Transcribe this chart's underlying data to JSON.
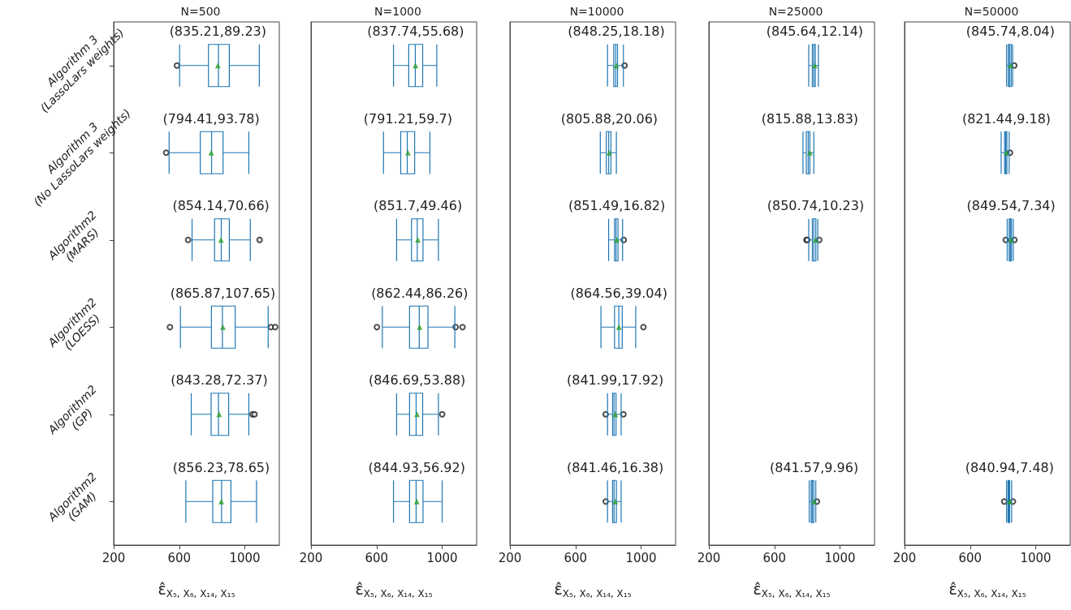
{
  "chart_data": [
    {
      "type": "box",
      "title": "N=500",
      "xlabel": "ε̂$_{X₅, X₆, X₁₄, X₁₅}$",
      "orientation": "horizontal",
      "color": "#1f77b4",
      "marker": "triangle",
      "grid": false,
      "categories": [
        "Algorithm 3\n(LassoLars weights)",
        "Algorithm 3\n(No LassoLars weights)",
        "Algorithm2\n(MARS)",
        "Algorithm2\n(LOESS)",
        "Algorithm2\n(GP)",
        "Algorithm2\n(GAM)"
      ],
      "xlim": [
        200,
        1210
      ],
      "xticks": [
        200,
        600,
        1000
      ],
      "boxes": [
        {
          "low": 602,
          "q1": 778,
          "median": 839,
          "q3": 905,
          "high": 1088,
          "mean": 835.21,
          "outliers": [
            586
          ]
        },
        {
          "low": 538,
          "q1": 728,
          "median": 797,
          "q3": 867,
          "high": 1024,
          "mean": 794.41,
          "outliers": [
            520
          ]
        },
        {
          "low": 678,
          "q1": 815,
          "median": 856,
          "q3": 905,
          "high": 1033,
          "mean": 854.14,
          "outliers": [
            654,
            1090
          ]
        },
        {
          "low": 607,
          "q1": 796,
          "median": 863,
          "q3": 941,
          "high": 1142,
          "mean": 865.87,
          "outliers": [
            543,
            1159,
            1185
          ]
        },
        {
          "low": 673,
          "q1": 794,
          "median": 839,
          "q3": 901,
          "high": 1024,
          "mean": 843.28,
          "outliers": [
            1047,
            1059
          ]
        },
        {
          "low": 640,
          "q1": 804,
          "median": 858,
          "q3": 915,
          "high": 1071,
          "mean": 856.23
        }
      ],
      "annotations": [
        "(835.21,89.23)",
        "(794.41,93.78)",
        "(854.14,70.66)",
        "(865.87,107.65)",
        "(843.28,72.37)",
        "(856.23,78.65)"
      ]
    },
    {
      "type": "box",
      "title": "N=1000",
      "xlabel": "ε̂$_{X₅, X₆, X₁₄, X₁₅}$",
      "orientation": "horizontal",
      "color": "#1f77b4",
      "marker": "triangle",
      "grid": false,
      "tick_labels": "x",
      "categories": [
        null,
        null,
        null,
        null,
        null,
        null
      ],
      "xlim": [
        200,
        1210
      ],
      "xticks": [
        200,
        600,
        1000
      ],
      "boxes": [
        {
          "low": 703,
          "q1": 796,
          "median": 836,
          "q3": 881,
          "high": 967,
          "mean": 837.74
        },
        {
          "low": 642,
          "q1": 747,
          "median": 787,
          "q3": 832,
          "high": 925,
          "mean": 791.21
        },
        {
          "low": 722,
          "q1": 813,
          "median": 848,
          "q3": 883,
          "high": 977,
          "mean": 851.7
        },
        {
          "low": 635,
          "q1": 801,
          "median": 860,
          "q3": 913,
          "high": 1077,
          "mean": 862.44,
          "outliers": [
            602,
            1082,
            1124
          ]
        },
        {
          "low": 722,
          "q1": 801,
          "median": 841,
          "q3": 881,
          "high": 977,
          "mean": 846.69,
          "outliers": [
            1000
          ]
        },
        {
          "low": 703,
          "q1": 801,
          "median": 841,
          "q3": 883,
          "high": 1000,
          "mean": 844.93
        }
      ],
      "annotations": [
        "(837.74,55.68)",
        "(791.21,59.7)",
        "(851.7,49.46)",
        "(862.44,86.26)",
        "(846.69,53.88)",
        "(844.93,56.92)"
      ]
    },
    {
      "type": "box",
      "title": "N=10000",
      "xlabel": "ε̂$_{X₅, X₆, X₁₄, X₁₅}$",
      "orientation": "horizontal",
      "color": "#1f77b4",
      "marker": "triangle",
      "grid": false,
      "tick_labels": "x",
      "categories": [
        null,
        null,
        null,
        null,
        null,
        null
      ],
      "xlim": [
        200,
        1210
      ],
      "xticks": [
        200,
        600,
        1000
      ],
      "boxes": [
        {
          "low": 795,
          "q1": 833,
          "median": 845,
          "q3": 856,
          "high": 892,
          "mean": 848.25,
          "outliers": [
            899
          ]
        },
        {
          "low": 751,
          "q1": 788,
          "median": 802,
          "q3": 816,
          "high": 849,
          "mean": 805.88
        },
        {
          "low": 802,
          "q1": 838,
          "median": 847,
          "q3": 859,
          "high": 887,
          "mean": 851.49,
          "outliers": [
            894
          ]
        },
        {
          "low": 755,
          "q1": 838,
          "median": 864,
          "q3": 885,
          "high": 967,
          "mean": 864.56,
          "outliers": [
            1014
          ]
        },
        {
          "low": 795,
          "q1": 826,
          "median": 835,
          "q3": 847,
          "high": 878,
          "mean": 841.99,
          "outliers": [
            784,
            892
          ]
        },
        {
          "low": 795,
          "q1": 826,
          "median": 835,
          "q3": 849,
          "high": 878,
          "mean": 841.46,
          "outliers": [
            784
          ]
        }
      ],
      "annotations": [
        "(848.25,18.18)",
        "(805.88,20.06)",
        "(851.49,16.82)",
        "(864.56,39.04)",
        "(841.99,17.92)",
        "(841.46,16.38)"
      ]
    },
    {
      "type": "box",
      "title": "N=25000",
      "xlabel": "ε̂$_{X₅, X₆, X₁₄, X₁₅}$",
      "orientation": "horizontal",
      "color": "#1f77b4",
      "marker": "triangle",
      "grid": false,
      "tick_labels": "x",
      "categories": [
        null,
        null,
        null,
        null,
        null,
        null
      ],
      "xlim": [
        200,
        1210
      ],
      "xticks": [
        200,
        600,
        1000
      ],
      "boxes": [
        {
          "low": 809,
          "q1": 831,
          "median": 840,
          "q3": 849,
          "high": 868,
          "mean": 845.64
        },
        {
          "low": 774,
          "q1": 794,
          "median": 806,
          "q3": 816,
          "high": 840,
          "mean": 815.88
        },
        {
          "low": 809,
          "q1": 831,
          "median": 840,
          "q3": 852,
          "high": 864,
          "mean": 850.74,
          "outliers": [
            795,
            800,
            873
          ]
        },
        null,
        null,
        {
          "low": 812,
          "q1": 824,
          "median": 831,
          "q3": 840,
          "high": 852,
          "mean": 841.57,
          "outliers": [
            859
          ]
        }
      ],
      "annotations": [
        "(845.64,12.14)",
        "(815.88,13.83)",
        "(850.74,10.23)",
        "(841.57,9.96)"
      ]
    },
    {
      "type": "box",
      "title": "N=50000",
      "xlabel": "ε̂$_{X₅, X₆, X₁₄, X₁₅}$",
      "orientation": "horizontal",
      "color": "#1f77b4",
      "marker": "triangle",
      "grid": false,
      "tick_labels": "x",
      "categories": [
        null,
        null,
        null,
        null,
        null,
        null
      ],
      "xlim": [
        200,
        1210
      ],
      "xticks": [
        200,
        600,
        1000
      ],
      "boxes": [
        {
          "low": 822,
          "q1": 833,
          "median": 840,
          "q3": 850,
          "high": 859,
          "mean": 845.74,
          "outliers": [
            869
          ]
        },
        {
          "low": 789,
          "q1": 810,
          "median": 817,
          "q3": 824,
          "high": 838,
          "mean": 821.44,
          "outliers": [
            843
          ]
        },
        {
          "low": 826,
          "q1": 838,
          "median": 845,
          "q3": 852,
          "high": 863,
          "mean": 849.54,
          "outliers": [
            817,
            870
          ]
        },
        null,
        null,
        {
          "low": 822,
          "q1": 831,
          "median": 836,
          "q3": 841,
          "high": 853,
          "mean": 840.94,
          "outliers": [
            808,
            861
          ]
        }
      ],
      "annotations": [
        "(845.74,8.04)",
        "(821.44,9.18)",
        "(849.54,7.34)",
        "(840.94,7.48)"
      ]
    }
  ]
}
